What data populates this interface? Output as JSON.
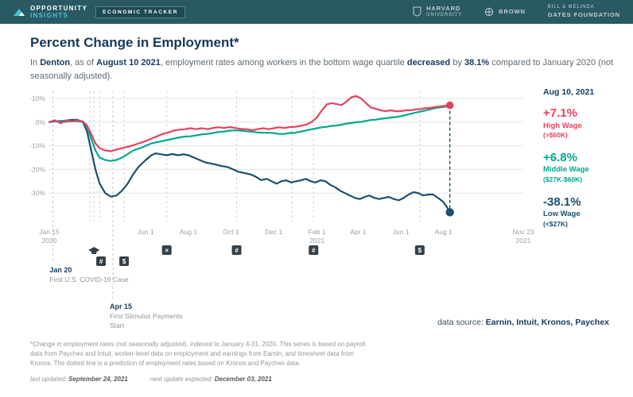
{
  "header": {
    "brand_top": "OPPORTUNITY",
    "brand_bottom": "INSIGHTS",
    "badge": "ECONOMIC TRACKER",
    "orgs": [
      {
        "line1": "HARVARD",
        "line2": "UNIVERSITY"
      },
      {
        "line1": "BROWN",
        "line2": ""
      },
      {
        "line1": "BILL & MELINDA",
        "line2": "GATES foundation"
      }
    ]
  },
  "title": "Percent Change in Employment*",
  "subtitle": {
    "pre": "In ",
    "city": "Denton",
    "mid1": ", as of ",
    "date": "August 10 2021",
    "mid2": ", employment rates among workers in the bottom wage quartile ",
    "verb": "decreased",
    "mid3": " by ",
    "pct": "38.1%",
    "post": " compared to January 2020 (not seasonally adjusted)."
  },
  "panel": {
    "as_of": "Aug 10, 2021",
    "entries": [
      {
        "pct": "+7.1%",
        "label": "High Wage",
        "range": "(>$60K)",
        "color": "#e8415f"
      },
      {
        "pct": "+6.8%",
        "label": "Middle Wage",
        "range": "($27K-$60K)",
        "color": "#00a88e"
      },
      {
        "pct": "-38.1%",
        "label": "Low Wage",
        "range": "(<$27K)",
        "color": "#1b506f"
      }
    ]
  },
  "datasource": {
    "label": "data source: ",
    "value": "Earnin, Intuit, Kronos, Paychex"
  },
  "footnote": "*Change in employment rates (not seasonally adjusted), indexed to January 4-31, 2020. This series is based on payroll data from Paychex and Intuit, worker-level data on employment and earnings from Earnin, and timesheet data from Kronos. The dotted line is a prediction of employment rates based on Kronos and Paychex data.",
  "updated": {
    "label1": "last updated: ",
    "date1": "September 24, 2021",
    "label2": "next update expected: ",
    "date2": "December 03, 2021"
  },
  "chart_data": {
    "type": "line",
    "title": "Percent Change in Employment*",
    "indexed_to": "January 2020",
    "x_axis": {
      "start_date": "Jan 15 2020",
      "end_date": "Nov 23 2021",
      "span_days": 678,
      "ticks": [
        {
          "day": 0,
          "label": "Jan 15",
          "label2": "2020"
        },
        {
          "day": 138,
          "label": "Jun 1"
        },
        {
          "day": 199,
          "label": "Aug 1"
        },
        {
          "day": 260,
          "label": "Oct 1"
        },
        {
          "day": 321,
          "label": "Dec 1"
        },
        {
          "day": 383,
          "label": "Feb 1",
          "label2": "2021"
        },
        {
          "day": 442,
          "label": "Apr 1"
        },
        {
          "day": 503,
          "label": "Jun 1"
        },
        {
          "day": 564,
          "label": "Aug 1"
        },
        {
          "day": 678,
          "label": "Nov 23",
          "label2": "2021"
        }
      ]
    },
    "y_axis": {
      "min": -42,
      "max": 13,
      "unit": "%",
      "ticks": [
        {
          "v": 10,
          "label": "+10%"
        },
        {
          "v": 0,
          "label": "0%"
        },
        {
          "v": -10,
          "label": "-10%"
        },
        {
          "v": -20,
          "label": "-20%"
        },
        {
          "v": -30,
          "label": "-30%"
        }
      ]
    },
    "series": [
      {
        "id": "low",
        "name": "Low Wage (<$27K)",
        "color": "#1b506f",
        "end_label": "-38.1%",
        "points": [
          [
            0,
            0
          ],
          [
            10,
            0.4
          ],
          [
            20,
            0.5
          ],
          [
            30,
            0.9
          ],
          [
            40,
            1
          ],
          [
            48,
            0
          ],
          [
            54,
            -4
          ],
          [
            60,
            -12
          ],
          [
            66,
            -20
          ],
          [
            72,
            -26
          ],
          [
            80,
            -30
          ],
          [
            88,
            -31.5
          ],
          [
            96,
            -31
          ],
          [
            104,
            -29
          ],
          [
            112,
            -26
          ],
          [
            120,
            -22
          ],
          [
            128,
            -18.8
          ],
          [
            138,
            -16
          ],
          [
            146,
            -14
          ],
          [
            152,
            -13.2
          ],
          [
            160,
            -13.6
          ],
          [
            168,
            -14
          ],
          [
            176,
            -13.5
          ],
          [
            184,
            -14
          ],
          [
            192,
            -13.6
          ],
          [
            199,
            -14
          ],
          [
            207,
            -15
          ],
          [
            215,
            -16
          ],
          [
            223,
            -17
          ],
          [
            231,
            -17.5
          ],
          [
            239,
            -18
          ],
          [
            247,
            -18.6
          ],
          [
            255,
            -19
          ],
          [
            263,
            -20
          ],
          [
            271,
            -21
          ],
          [
            279,
            -21.5
          ],
          [
            287,
            -22
          ],
          [
            295,
            -23
          ],
          [
            303,
            -24.5
          ],
          [
            311,
            -24
          ],
          [
            318,
            -25
          ],
          [
            325,
            -26
          ],
          [
            332,
            -25
          ],
          [
            339,
            -24.6
          ],
          [
            346,
            -25.5
          ],
          [
            353,
            -25
          ],
          [
            360,
            -24.6
          ],
          [
            367,
            -24
          ],
          [
            374,
            -25
          ],
          [
            381,
            -25.5
          ],
          [
            388,
            -24.6
          ],
          [
            395,
            -25
          ],
          [
            402,
            -26.5
          ],
          [
            409,
            -27.5
          ],
          [
            416,
            -29
          ],
          [
            423,
            -30
          ],
          [
            430,
            -31
          ],
          [
            437,
            -32
          ],
          [
            444,
            -32.5
          ],
          [
            451,
            -31.6
          ],
          [
            458,
            -31
          ],
          [
            465,
            -32
          ],
          [
            472,
            -32.5
          ],
          [
            479,
            -32
          ],
          [
            486,
            -31.6
          ],
          [
            493,
            -32.5
          ],
          [
            500,
            -33
          ],
          [
            507,
            -32
          ],
          [
            514,
            -30.6
          ],
          [
            521,
            -29.6
          ],
          [
            528,
            -30
          ],
          [
            535,
            -31
          ],
          [
            542,
            -30.6
          ],
          [
            549,
            -30.6
          ],
          [
            556,
            -32
          ],
          [
            563,
            -33.5
          ],
          [
            568,
            -35.5
          ],
          [
            573,
            -38.1
          ]
        ]
      },
      {
        "id": "mid",
        "name": "Middle Wage ($27K-$60K)",
        "color": "#00a88e",
        "end_label": "+6.8%",
        "points": [
          [
            0,
            0
          ],
          [
            10,
            0.4
          ],
          [
            20,
            0
          ],
          [
            30,
            0.4
          ],
          [
            40,
            0.4
          ],
          [
            48,
            0
          ],
          [
            54,
            -2
          ],
          [
            60,
            -7
          ],
          [
            66,
            -12
          ],
          [
            72,
            -15
          ],
          [
            80,
            -16
          ],
          [
            88,
            -16.4
          ],
          [
            96,
            -16
          ],
          [
            104,
            -15
          ],
          [
            112,
            -13.5
          ],
          [
            120,
            -12
          ],
          [
            130,
            -11
          ],
          [
            138,
            -10
          ],
          [
            146,
            -9
          ],
          [
            154,
            -8.5
          ],
          [
            162,
            -8
          ],
          [
            170,
            -7.5
          ],
          [
            178,
            -7
          ],
          [
            186,
            -6.5
          ],
          [
            194,
            -6.1
          ],
          [
            202,
            -6
          ],
          [
            210,
            -5.6
          ],
          [
            218,
            -5.2
          ],
          [
            226,
            -5
          ],
          [
            234,
            -4.6
          ],
          [
            242,
            -4.2
          ],
          [
            250,
            -4
          ],
          [
            258,
            -3.6
          ],
          [
            266,
            -3.5
          ],
          [
            274,
            -3.6
          ],
          [
            282,
            -3.9
          ],
          [
            290,
            -4
          ],
          [
            298,
            -4.4
          ],
          [
            306,
            -4.5
          ],
          [
            314,
            -4.5
          ],
          [
            321,
            -4.6
          ],
          [
            328,
            -5
          ],
          [
            336,
            -5
          ],
          [
            344,
            -4.6
          ],
          [
            352,
            -4.5
          ],
          [
            360,
            -4
          ],
          [
            368,
            -3.5
          ],
          [
            376,
            -3
          ],
          [
            383,
            -2.6
          ],
          [
            390,
            -2.2
          ],
          [
            397,
            -2
          ],
          [
            404,
            -1.6
          ],
          [
            411,
            -1.5
          ],
          [
            418,
            -1.1
          ],
          [
            425,
            -0.6
          ],
          [
            432,
            -0.4
          ],
          [
            439,
            0
          ],
          [
            446,
            0.1
          ],
          [
            453,
            0.5
          ],
          [
            460,
            0.9
          ],
          [
            467,
            1
          ],
          [
            474,
            1.4
          ],
          [
            481,
            1.6
          ],
          [
            488,
            1.9
          ],
          [
            495,
            2.1
          ],
          [
            503,
            2.5
          ],
          [
            510,
            3
          ],
          [
            517,
            3.5
          ],
          [
            524,
            4
          ],
          [
            531,
            4.4
          ],
          [
            538,
            4.9
          ],
          [
            545,
            5.4
          ],
          [
            552,
            5.9
          ],
          [
            559,
            6.2
          ],
          [
            566,
            6.5
          ],
          [
            573,
            6.8
          ]
        ]
      },
      {
        "id": "high",
        "name": "High Wage (>$60K)",
        "color": "#e8415f",
        "end_label": "+7.1%",
        "points": [
          [
            0,
            0
          ],
          [
            8,
            0.8
          ],
          [
            16,
            -0.5
          ],
          [
            24,
            0.8
          ],
          [
            32,
            0.3
          ],
          [
            40,
            0.8
          ],
          [
            48,
            0.3
          ],
          [
            54,
            -1.5
          ],
          [
            60,
            -5
          ],
          [
            66,
            -9
          ],
          [
            72,
            -11
          ],
          [
            80,
            -12
          ],
          [
            88,
            -12.3
          ],
          [
            96,
            -11.6
          ],
          [
            104,
            -11
          ],
          [
            112,
            -10.4
          ],
          [
            120,
            -9.8
          ],
          [
            130,
            -8.8
          ],
          [
            138,
            -8
          ],
          [
            146,
            -7
          ],
          [
            154,
            -6
          ],
          [
            162,
            -5
          ],
          [
            170,
            -4.4
          ],
          [
            178,
            -3.6
          ],
          [
            186,
            -3.2
          ],
          [
            194,
            -3
          ],
          [
            202,
            -2.6
          ],
          [
            210,
            -3
          ],
          [
            218,
            -2.6
          ],
          [
            226,
            -3
          ],
          [
            234,
            -2.5
          ],
          [
            242,
            -2.2
          ],
          [
            250,
            -2.5
          ],
          [
            258,
            -2.1
          ],
          [
            266,
            -2.5
          ],
          [
            274,
            -2.9
          ],
          [
            282,
            -3
          ],
          [
            290,
            -3.4
          ],
          [
            298,
            -3
          ],
          [
            306,
            -2.6
          ],
          [
            314,
            -3
          ],
          [
            321,
            -2.6
          ],
          [
            328,
            -2.2
          ],
          [
            336,
            -2.5
          ],
          [
            344,
            -2.1
          ],
          [
            352,
            -2
          ],
          [
            360,
            -1.6
          ],
          [
            368,
            -1
          ],
          [
            376,
            0.2
          ],
          [
            383,
            2
          ],
          [
            390,
            5
          ],
          [
            397,
            7.5
          ],
          [
            404,
            8
          ],
          [
            411,
            7.6
          ],
          [
            418,
            7.2
          ],
          [
            425,
            8.6
          ],
          [
            432,
            10.5
          ],
          [
            439,
            11
          ],
          [
            446,
            10
          ],
          [
            453,
            8
          ],
          [
            460,
            6.2
          ],
          [
            467,
            5.6
          ],
          [
            474,
            5
          ],
          [
            481,
            4.6
          ],
          [
            488,
            5
          ],
          [
            495,
            4.6
          ],
          [
            503,
            4.6
          ],
          [
            510,
            5
          ],
          [
            517,
            5
          ],
          [
            524,
            5.4
          ],
          [
            531,
            5.5
          ],
          [
            538,
            5.9
          ],
          [
            545,
            6
          ],
          [
            552,
            6.4
          ],
          [
            559,
            6.6
          ],
          [
            566,
            6.9
          ],
          [
            573,
            7.1
          ]
        ]
      }
    ],
    "events": [
      {
        "day": 58
      },
      {
        "day": 64
      },
      {
        "day": 72
      },
      {
        "day": 107
      },
      {
        "day": 168
      },
      {
        "day": 268
      },
      {
        "day": 347
      },
      {
        "day": 378
      },
      {
        "day": 530
      }
    ],
    "icons": [
      {
        "day": 64,
        "row": 1,
        "glyph": "cap",
        "name": "school-closure-icon"
      },
      {
        "day": 74,
        "row": 2,
        "glyph": "#",
        "name": "tax-deadline-icon"
      },
      {
        "day": 107,
        "row": 2,
        "glyph": "$",
        "name": "stimulus-payment-icon"
      },
      {
        "day": 168,
        "row": 1,
        "glyph": "×",
        "name": "business-closure-icon"
      },
      {
        "day": 268,
        "row": 1,
        "glyph": "#",
        "name": "event-icon"
      },
      {
        "day": 378,
        "row": 1,
        "glyph": "#",
        "name": "event-icon"
      },
      {
        "day": 530,
        "row": 1,
        "glyph": "$",
        "name": "child-tax-credit-icon"
      }
    ],
    "annotations": [
      {
        "day": 5,
        "level": 1,
        "title": "Jan 20",
        "lines": [
          "First U.S. COVID-19 Case"
        ]
      },
      {
        "day": 91,
        "level": 2,
        "title": "Apr 15",
        "lines": [
          "First Stimulus Payments",
          "Start"
        ]
      }
    ],
    "end_marker": {
      "day": 573,
      "date": "Aug 10, 2021",
      "top_value": 7.1,
      "bottom_value": -38.1,
      "top_color": "#e8415f",
      "bottom_color": "#1b506f"
    },
    "grid": true,
    "legend_position": "right"
  }
}
